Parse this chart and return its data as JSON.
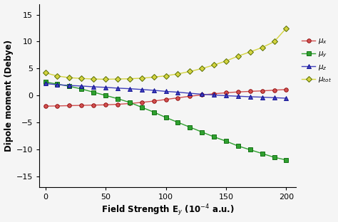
{
  "x": [
    0,
    10,
    20,
    30,
    40,
    50,
    60,
    70,
    80,
    90,
    100,
    110,
    120,
    130,
    140,
    150,
    160,
    170,
    180,
    190,
    200
  ],
  "mu_x": [
    -2.0,
    -1.95,
    -1.9,
    -1.85,
    -1.8,
    -1.75,
    -1.65,
    -1.5,
    -1.3,
    -1.05,
    -0.75,
    -0.45,
    -0.15,
    0.1,
    0.3,
    0.5,
    0.65,
    0.75,
    0.85,
    0.98,
    1.1
  ],
  "mu_y": [
    2.5,
    2.1,
    1.7,
    1.2,
    0.6,
    0.0,
    -0.6,
    -1.3,
    -2.2,
    -3.1,
    -4.1,
    -5.0,
    -5.9,
    -6.8,
    -7.7,
    -8.5,
    -9.4,
    -10.1,
    -10.8,
    -11.5,
    -12.0
  ],
  "mu_z": [
    2.2,
    2.0,
    1.85,
    1.75,
    1.6,
    1.5,
    1.35,
    1.25,
    1.1,
    0.95,
    0.75,
    0.6,
    0.4,
    0.22,
    0.08,
    -0.05,
    -0.15,
    -0.25,
    -0.32,
    -0.42,
    -0.52
  ],
  "mu_tot": [
    4.2,
    3.6,
    3.3,
    3.15,
    3.05,
    3.0,
    3.05,
    3.1,
    3.2,
    3.4,
    3.65,
    4.0,
    4.45,
    5.0,
    5.65,
    6.4,
    7.3,
    8.1,
    8.9,
    10.0,
    12.5
  ],
  "xlabel": "Field Strength E$_y$ (10$^{-4}$ a.u.)",
  "ylabel": "Dipole moment (Debye)",
  "xlim": [
    -5,
    208
  ],
  "ylim": [
    -17,
    17
  ],
  "yticks": [
    -15,
    -10,
    -5,
    0,
    5,
    10,
    15
  ],
  "xticks": [
    0,
    50,
    100,
    150,
    200
  ],
  "color_x": "#d05050",
  "color_y": "#30a030",
  "color_z": "#4040bb",
  "color_tot": "#d4d440",
  "marker_x": "o",
  "marker_y": "s",
  "marker_z": "^",
  "marker_tot": "D",
  "legend_x": "$\\mu_x$",
  "legend_y": "$\\mu_y$",
  "legend_z": "$\\mu_z$",
  "legend_tot": "$\\mu_{tot}$",
  "bg_color": "#f5f5f5",
  "linewidth": 1.0,
  "markersize": 4.0
}
